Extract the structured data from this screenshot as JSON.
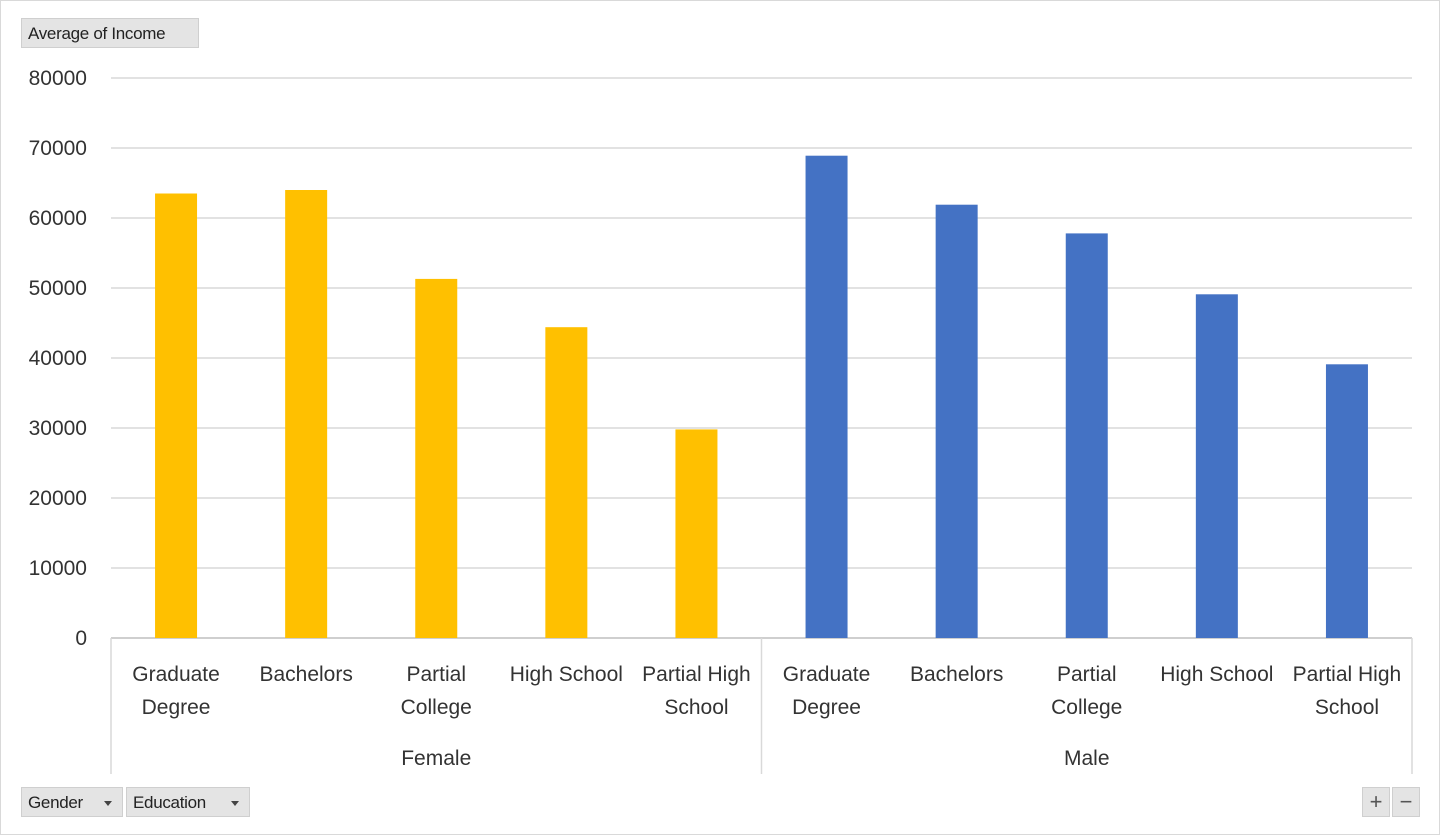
{
  "pivot_buttons": {
    "value_field": "Average of Income",
    "axis_fields": [
      {
        "label": "Gender"
      },
      {
        "label": "Education"
      }
    ],
    "zoom_in": "+",
    "zoom_out": "−"
  },
  "chart_data": {
    "type": "bar",
    "title": "",
    "xlabel": "",
    "ylabel": "",
    "ylim": [
      0,
      80000
    ],
    "yticks": [
      0,
      10000,
      20000,
      30000,
      40000,
      50000,
      60000,
      70000,
      80000
    ],
    "grid": true,
    "groups": [
      {
        "name": "Female",
        "color": "#FFC000",
        "categories": [
          "Graduate Degree",
          "Bachelors",
          "Partial College",
          "High School",
          "Partial High School"
        ],
        "values": [
          63500,
          64000,
          51300,
          44400,
          29800
        ]
      },
      {
        "name": "Male",
        "color": "#4472C4",
        "categories": [
          "Graduate Degree",
          "Bachelors",
          "Partial College",
          "High School",
          "Partial High School"
        ],
        "values": [
          68900,
          61900,
          57800,
          49100,
          39100
        ]
      }
    ]
  }
}
